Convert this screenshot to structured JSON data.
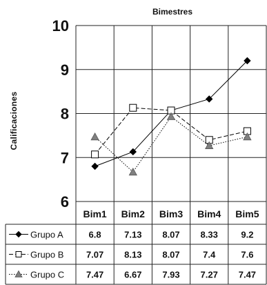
{
  "chart_data": {
    "type": "line",
    "title": "Bimestres",
    "ylabel": "Calificaciones",
    "xlabel": "",
    "categories": [
      "Bim1",
      "Bim2",
      "Bim3",
      "Bim4",
      "Bim5"
    ],
    "ylim": [
      6,
      10
    ],
    "yticks": [
      "6",
      "7",
      "8",
      "9",
      "10"
    ],
    "grid": true,
    "legend": "data-table-below",
    "series": [
      {
        "name": "Grupo A",
        "values": [
          6.8,
          7.13,
          8.07,
          8.33,
          9.2
        ],
        "labels": [
          "6.8",
          "7.13",
          "8.07",
          "8.33",
          "9.2"
        ],
        "marker": "diamond",
        "dash": "solid",
        "color": "#000000"
      },
      {
        "name": "Grupo B",
        "values": [
          7.07,
          8.13,
          8.07,
          7.4,
          7.6
        ],
        "labels": [
          "7.07",
          "8.13",
          "8.07",
          "7.4",
          "7.6"
        ],
        "marker": "square",
        "dash": "dashed",
        "color": "#000000"
      },
      {
        "name": "Grupo C",
        "values": [
          7.47,
          6.67,
          7.93,
          7.27,
          7.47
        ],
        "labels": [
          "7.47",
          "6.67",
          "7.93",
          "7.27",
          "7.47"
        ],
        "marker": "triangle",
        "dash": "dotted",
        "color": "#808080"
      }
    ]
  }
}
